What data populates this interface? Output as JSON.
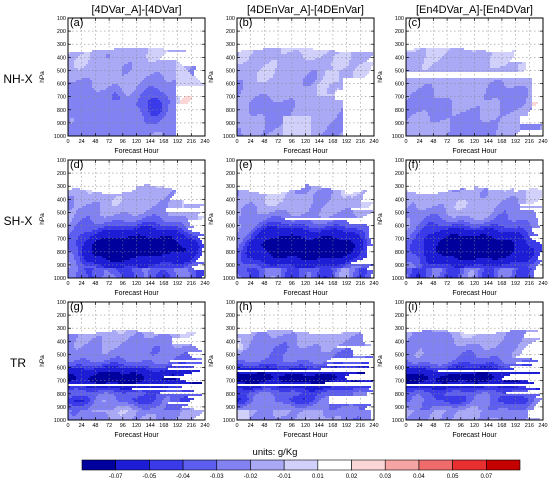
{
  "chart_data": {
    "type": "heatmap",
    "column_titles": [
      "[4DVar_A]-[4DVar]",
      "[4DEnVar_A]-[4DEnVar]",
      "[En4DVar_A]-[En4DVar]"
    ],
    "row_labels": [
      "NH-X",
      "SH-X",
      "TR"
    ],
    "panel_letters": [
      "(a)",
      "(b)",
      "(c)",
      "(d)",
      "(e)",
      "(f)",
      "(g)",
      "(h)",
      "(i)"
    ],
    "xlabel": "Forecast Hour",
    "ylabel": "hPa",
    "x_ticks": [
      0,
      24,
      48,
      72,
      96,
      120,
      144,
      168,
      192,
      216,
      240
    ],
    "y_ticks": [
      100,
      200,
      300,
      400,
      500,
      600,
      700,
      800,
      900,
      1000
    ],
    "xlim": [
      0,
      240
    ],
    "ylim": [
      1000,
      100
    ],
    "grid": true,
    "legend": {
      "position": "bottom",
      "title": "units: g/Kg",
      "levels": [
        -0.07,
        -0.05,
        -0.04,
        -0.03,
        -0.02,
        -0.01,
        0.01,
        0.02,
        0.03,
        0.04,
        0.05,
        0.07
      ],
      "level_labels": [
        "-0.07",
        "-0.05",
        "-0.04",
        "-0.03",
        "-0.02",
        "-0.01",
        "0.01",
        "0.02",
        "0.03",
        "0.04",
        "0.05",
        "0.07"
      ],
      "colors": [
        "#00009c",
        "#1d1dd6",
        "#3a3ae8",
        "#5d5df0",
        "#8282f2",
        "#a9a9f6",
        "#d0d0fb",
        "#ffffff",
        "#fbd6d6",
        "#f6a4a4",
        "#f06c6c",
        "#e83030",
        "#c40000"
      ]
    },
    "panels": [
      {
        "bottom_profiles": [
          [
            0,
            330,
            710,
            0
          ],
          [
            48,
            340,
            740,
            0
          ],
          [
            96,
            335,
            680,
            0
          ],
          [
            144,
            330,
            700,
            0
          ],
          [
            168,
            340,
            760,
            0
          ],
          [
            192,
            450,
            930,
            0
          ],
          [
            216,
            600,
            1000,
            0
          ],
          [
            240,
            640,
            1000,
            0
          ]
        ],
        "notes": "negative below ~340 hPa, deepest near 700 hPa"
      },
      {
        "bottom_profiles": [
          [
            0,
            350,
            680
          ],
          [
            240,
            340,
            800
          ]
        ],
        "notes": "weak negatives, white gaps near surface"
      },
      {
        "bottom_profiles": [
          [
            0,
            330,
            700
          ],
          [
            240,
            350,
            760
          ]
        ],
        "notes": "weak negatives, faint positive near right edge"
      },
      {
        "notes": "strong negatives 500-950 hPa"
      },
      {
        "notes": "strong negatives 500-950 hPa"
      },
      {
        "notes": "strong negatives 500-950 hPa"
      },
      {
        "notes": "negatives 500-900 hPa"
      },
      {
        "notes": "negatives 500-900 hPa"
      },
      {
        "notes": "negatives 500-900 hPa"
      }
    ]
  }
}
